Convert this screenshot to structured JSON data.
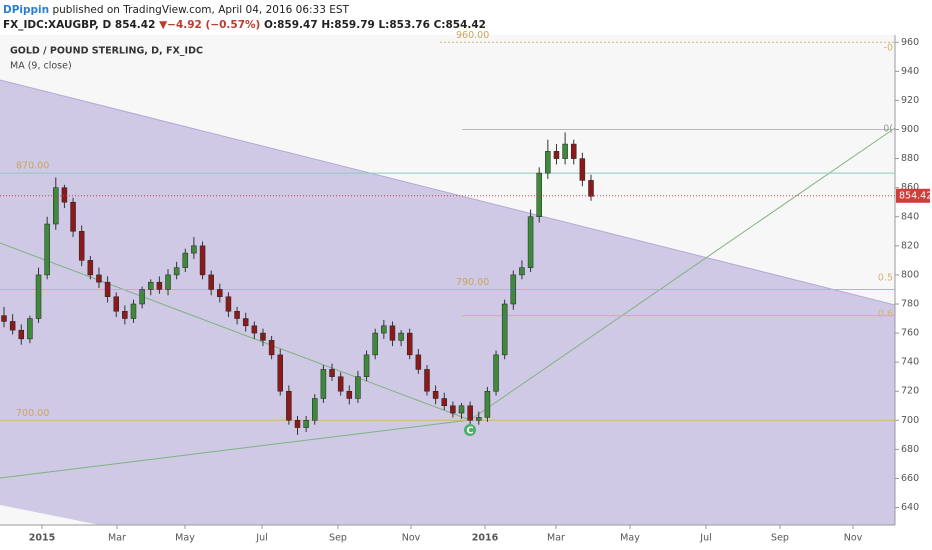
{
  "header": {
    "author": "DPippin",
    "published": "published on TradingView.com, April 04, 2016 06:33 EST",
    "symbol": "FX_IDC:XAUGBP, D",
    "last": "854.42",
    "arrow": "▼",
    "change": "−4.92 (−0.57%)",
    "open": "O:859.47",
    "high": "H:859.79",
    "low": "L:853.76",
    "close": "C:854.42"
  },
  "chart_data": {
    "type": "candlestick",
    "title": "GOLD / POUND STERLING, D, FX_IDC",
    "indicator": "MA (9, close)",
    "x_labels": [
      "2015",
      "Mar",
      "May",
      "Jul",
      "Sep",
      "Nov",
      "2016",
      "Mar",
      "May",
      "Jul",
      "Sep",
      "Nov"
    ],
    "open": [
      772,
      768,
      762,
      756,
      770,
      800,
      835,
      860,
      850,
      830,
      810,
      800,
      795,
      785,
      775,
      770,
      780,
      790,
      795,
      790,
      800,
      805,
      815,
      820,
      800,
      790,
      785,
      775,
      770,
      765,
      760,
      755,
      745,
      720,
      700,
      695,
      700,
      715,
      735,
      730,
      720,
      715,
      730,
      745,
      760,
      765,
      755,
      760,
      745,
      735,
      720,
      715,
      710,
      705,
      710,
      700,
      702,
      720,
      745,
      780,
      800,
      805,
      840,
      870,
      885,
      880,
      890,
      880,
      865
    ],
    "high": [
      778,
      773,
      766,
      772,
      805,
      840,
      867,
      862,
      853,
      834,
      813,
      805,
      799,
      788,
      779,
      783,
      792,
      797,
      799,
      804,
      809,
      818,
      826,
      823,
      803,
      794,
      788,
      778,
      774,
      768,
      763,
      758,
      749,
      724,
      703,
      703,
      718,
      738,
      739,
      733,
      724,
      734,
      748,
      763,
      769,
      768,
      762,
      763,
      749,
      738,
      724,
      719,
      713,
      712,
      713,
      706,
      723,
      748,
      783,
      803,
      810,
      845,
      874,
      893,
      890,
      898,
      893,
      884,
      869
    ],
    "low": [
      764,
      759,
      752,
      753,
      767,
      797,
      831,
      846,
      826,
      806,
      797,
      791,
      781,
      771,
      766,
      767,
      777,
      786,
      787,
      786,
      797,
      802,
      811,
      797,
      786,
      781,
      771,
      766,
      761,
      756,
      751,
      742,
      717,
      697,
      690,
      692,
      697,
      712,
      727,
      717,
      711,
      712,
      727,
      742,
      756,
      751,
      751,
      742,
      732,
      717,
      711,
      707,
      702,
      701,
      697,
      697,
      699,
      717,
      742,
      776,
      797,
      802,
      836,
      866,
      876,
      876,
      876,
      861,
      851
    ],
    "close": [
      768,
      762,
      756,
      770,
      800,
      835,
      860,
      850,
      830,
      810,
      800,
      795,
      785,
      775,
      770,
      780,
      790,
      795,
      790,
      800,
      805,
      815,
      820,
      800,
      790,
      785,
      775,
      770,
      765,
      760,
      755,
      745,
      720,
      700,
      695,
      700,
      715,
      735,
      730,
      720,
      715,
      730,
      745,
      760,
      765,
      755,
      760,
      745,
      735,
      720,
      715,
      710,
      705,
      710,
      700,
      702,
      720,
      745,
      780,
      800,
      805,
      840,
      870,
      885,
      880,
      890,
      880,
      865,
      854
    ],
    "up_color": "#3f8a3a",
    "down_color": "#8b1a1a",
    "ylim": [
      628,
      965
    ],
    "yticks": [
      640,
      660,
      680,
      700,
      720,
      740,
      760,
      780,
      800,
      820,
      840,
      860,
      880,
      900,
      920,
      940,
      960
    ],
    "last_price": {
      "value": 854.42,
      "label": "854.42"
    },
    "levels": [
      {
        "value": 960,
        "label": "960.00"
      },
      {
        "value": 870,
        "label": "870.00"
      },
      {
        "value": 790,
        "label": "790.00"
      },
      {
        "value": 700,
        "label": "700.00"
      }
    ],
    "fib_labels": [
      "-0",
      "0(",
      "0.5",
      "0.6"
    ],
    "marker": "C"
  }
}
